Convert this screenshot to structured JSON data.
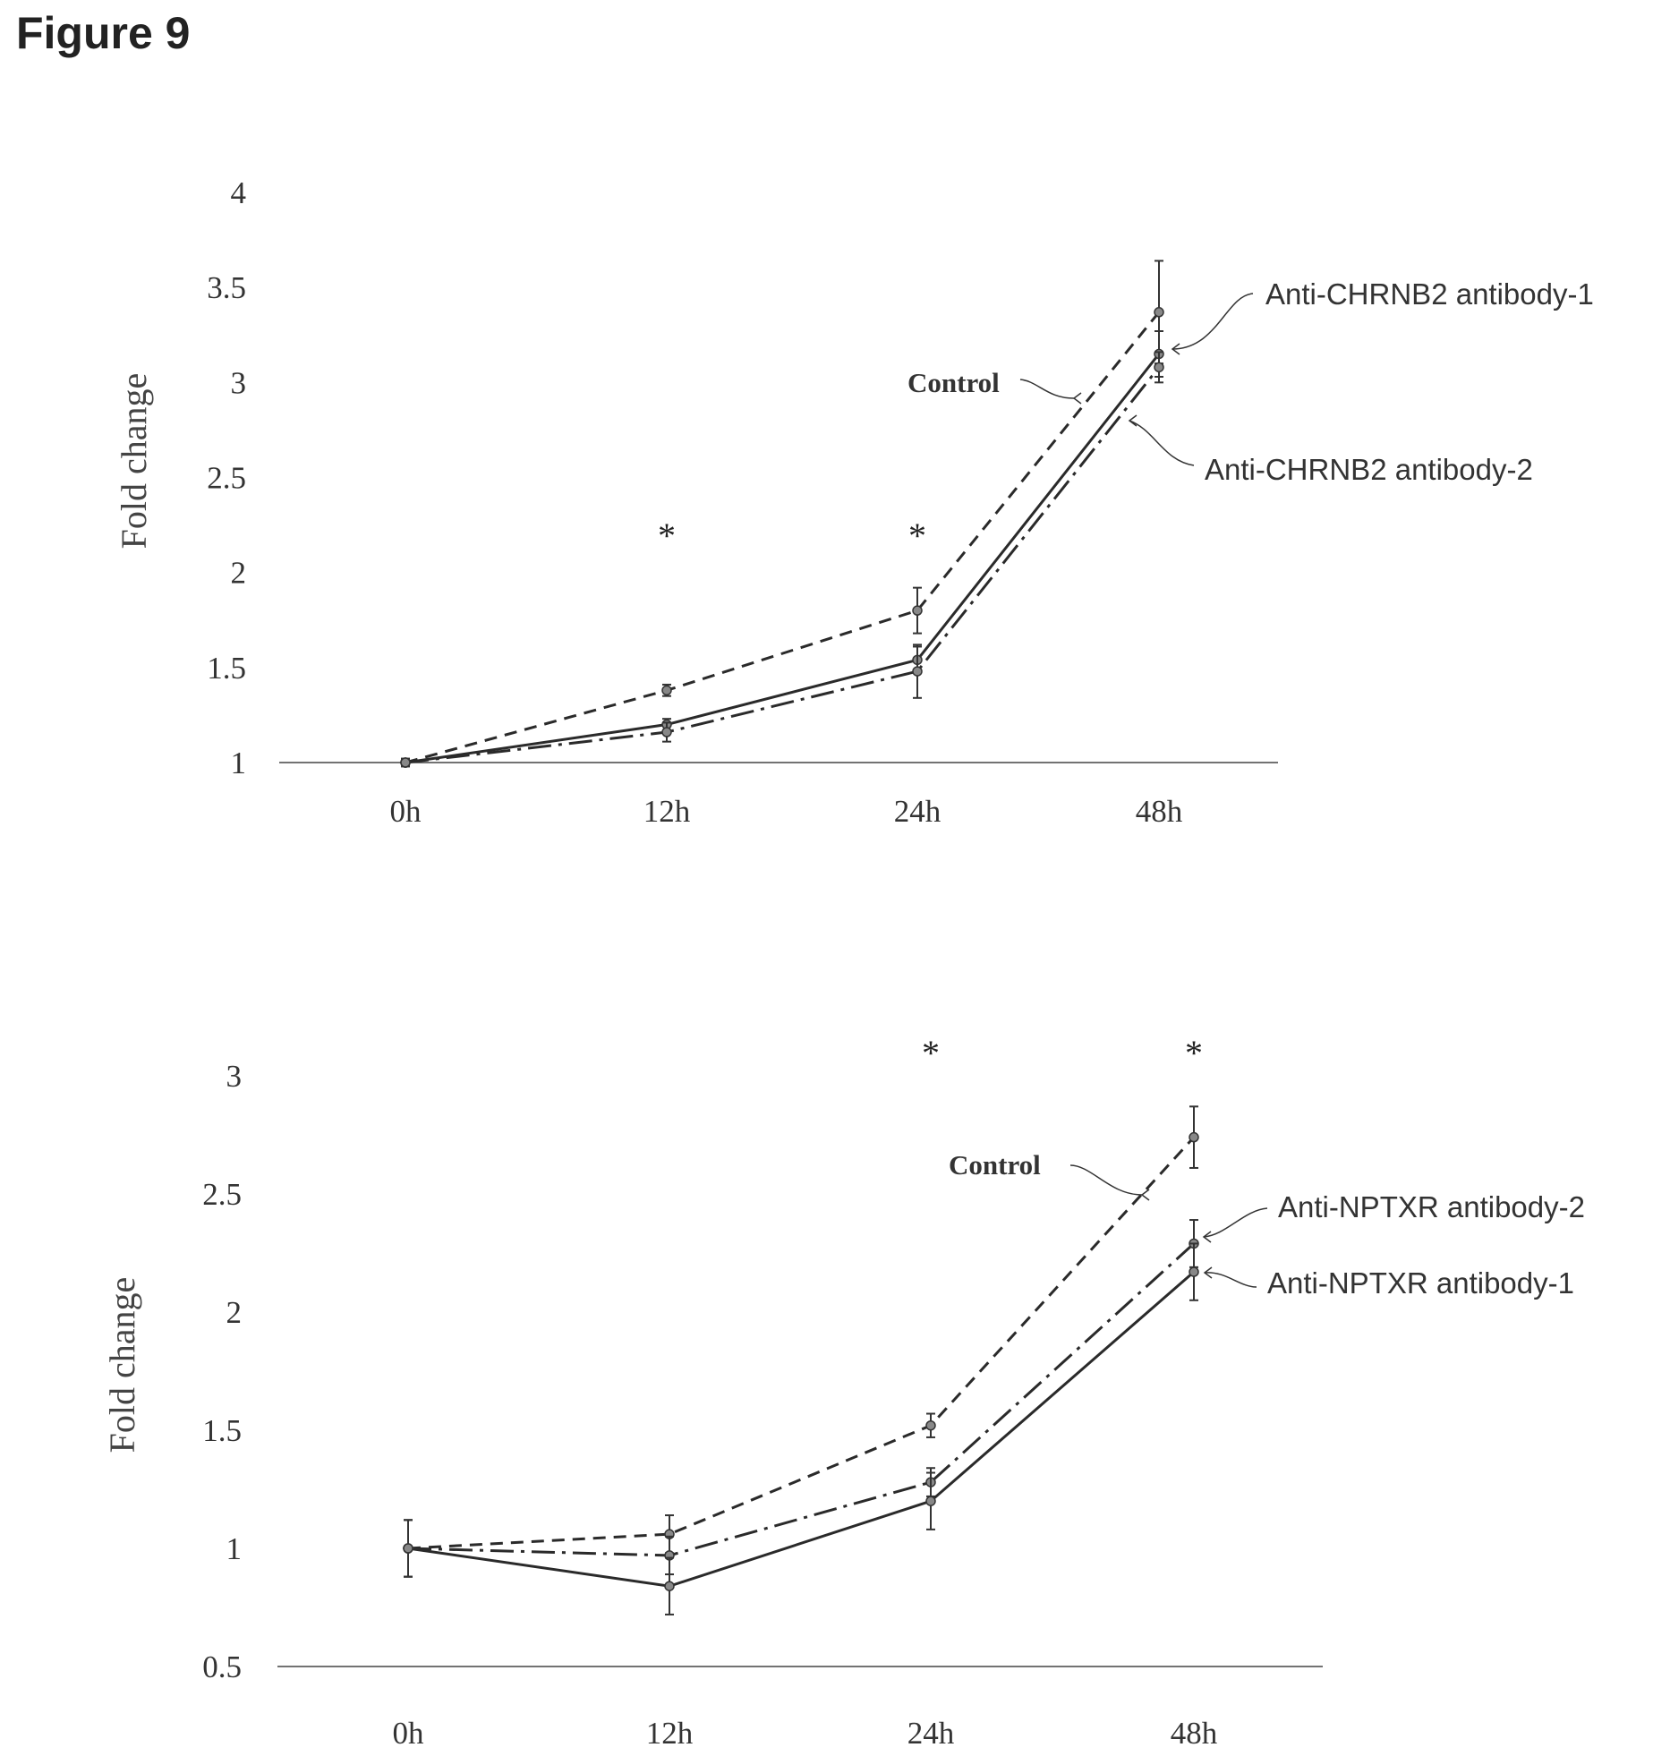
{
  "page": {
    "figure_title": "Figure 9"
  },
  "chart_data": [
    {
      "type": "line",
      "title": "",
      "xlabel": "",
      "ylabel": "Fold change",
      "categories": [
        "0h",
        "12h",
        "24h",
        "48h"
      ],
      "yticks": [
        "1",
        "1.5",
        "2",
        "2.5",
        "3",
        "3.5",
        "4"
      ],
      "ylim": [
        1,
        4
      ],
      "grid": false,
      "series": [
        {
          "name": "Control",
          "style": "dashed",
          "values": [
            1.0,
            1.38,
            1.8,
            3.37
          ],
          "errors": [
            0.02,
            0.03,
            0.12,
            0.27
          ]
        },
        {
          "name": "Anti-CHRNB2 antibody-1",
          "style": "solid",
          "values": [
            1.0,
            1.2,
            1.54,
            3.15
          ],
          "errors": [
            0.02,
            0.03,
            0.07,
            0.12
          ]
        },
        {
          "name": "Anti-CHRNB2 antibody-2",
          "style": "dashdot",
          "values": [
            1.0,
            1.16,
            1.48,
            3.08
          ],
          "errors": [
            0.02,
            0.05,
            0.14,
            0.08
          ]
        }
      ],
      "significance": [
        {
          "category": "12h",
          "label": "*"
        },
        {
          "category": "24h",
          "label": "*"
        }
      ],
      "annotations": [
        "Control",
        "Anti-CHRNB2 antibody-1",
        "Anti-CHRNB2 antibody-2"
      ]
    },
    {
      "type": "line",
      "title": "",
      "xlabel": "",
      "ylabel": "Fold change",
      "categories": [
        "0h",
        "12h",
        "24h",
        "48h"
      ],
      "yticks": [
        "0.5",
        "1",
        "1.5",
        "2",
        "2.5",
        "3"
      ],
      "ylim": [
        0.5,
        3
      ],
      "grid": false,
      "series": [
        {
          "name": "Control",
          "style": "dashed",
          "values": [
            1.0,
            1.06,
            1.52,
            2.74
          ],
          "errors": [
            0.12,
            0.08,
            0.05,
            0.13
          ]
        },
        {
          "name": "Anti-NPTXR antibody-2",
          "style": "dashdot",
          "values": [
            1.0,
            0.97,
            1.28,
            2.29
          ],
          "errors": [
            0.12,
            0.08,
            0.06,
            0.1
          ]
        },
        {
          "name": "Anti-NPTXR antibody-1",
          "style": "solid",
          "values": [
            1.0,
            0.84,
            1.2,
            2.17
          ],
          "errors": [
            0.12,
            0.12,
            0.12,
            0.12
          ]
        }
      ],
      "significance": [
        {
          "category": "24h",
          "label": "*"
        },
        {
          "category": "48h",
          "label": "*"
        }
      ],
      "annotations": [
        "Control",
        "Anti-NPTXR antibody-2",
        "Anti-NPTXR antibody-1"
      ]
    }
  ]
}
